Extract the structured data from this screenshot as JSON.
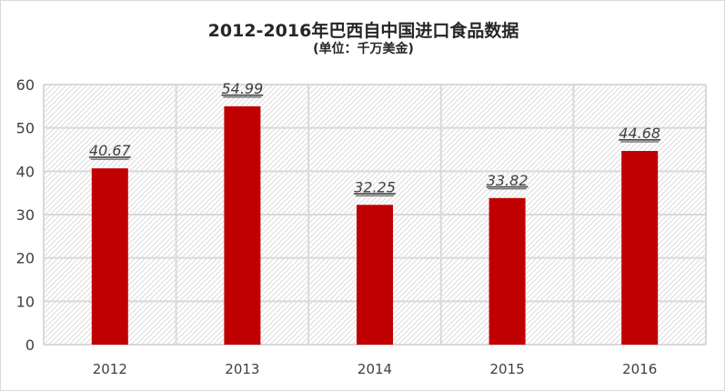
{
  "chart_data": {
    "type": "bar",
    "title": "2012-2016年巴西自中国进口食品数据",
    "subtitle": "(单位：千万美金)",
    "categories": [
      "2012",
      "2013",
      "2014",
      "2015",
      "2016"
    ],
    "values": [
      40.67,
      54.99,
      32.25,
      33.82,
      44.68
    ],
    "data_labels": [
      "40.67",
      "54.99",
      "32.25",
      "33.82",
      "44.68"
    ],
    "ylim": [
      0,
      60
    ],
    "yticks": [
      0,
      10,
      20,
      30,
      40,
      50,
      60
    ],
    "grid": true,
    "bar_color": "#C00000",
    "xlabel": "",
    "ylabel": ""
  }
}
